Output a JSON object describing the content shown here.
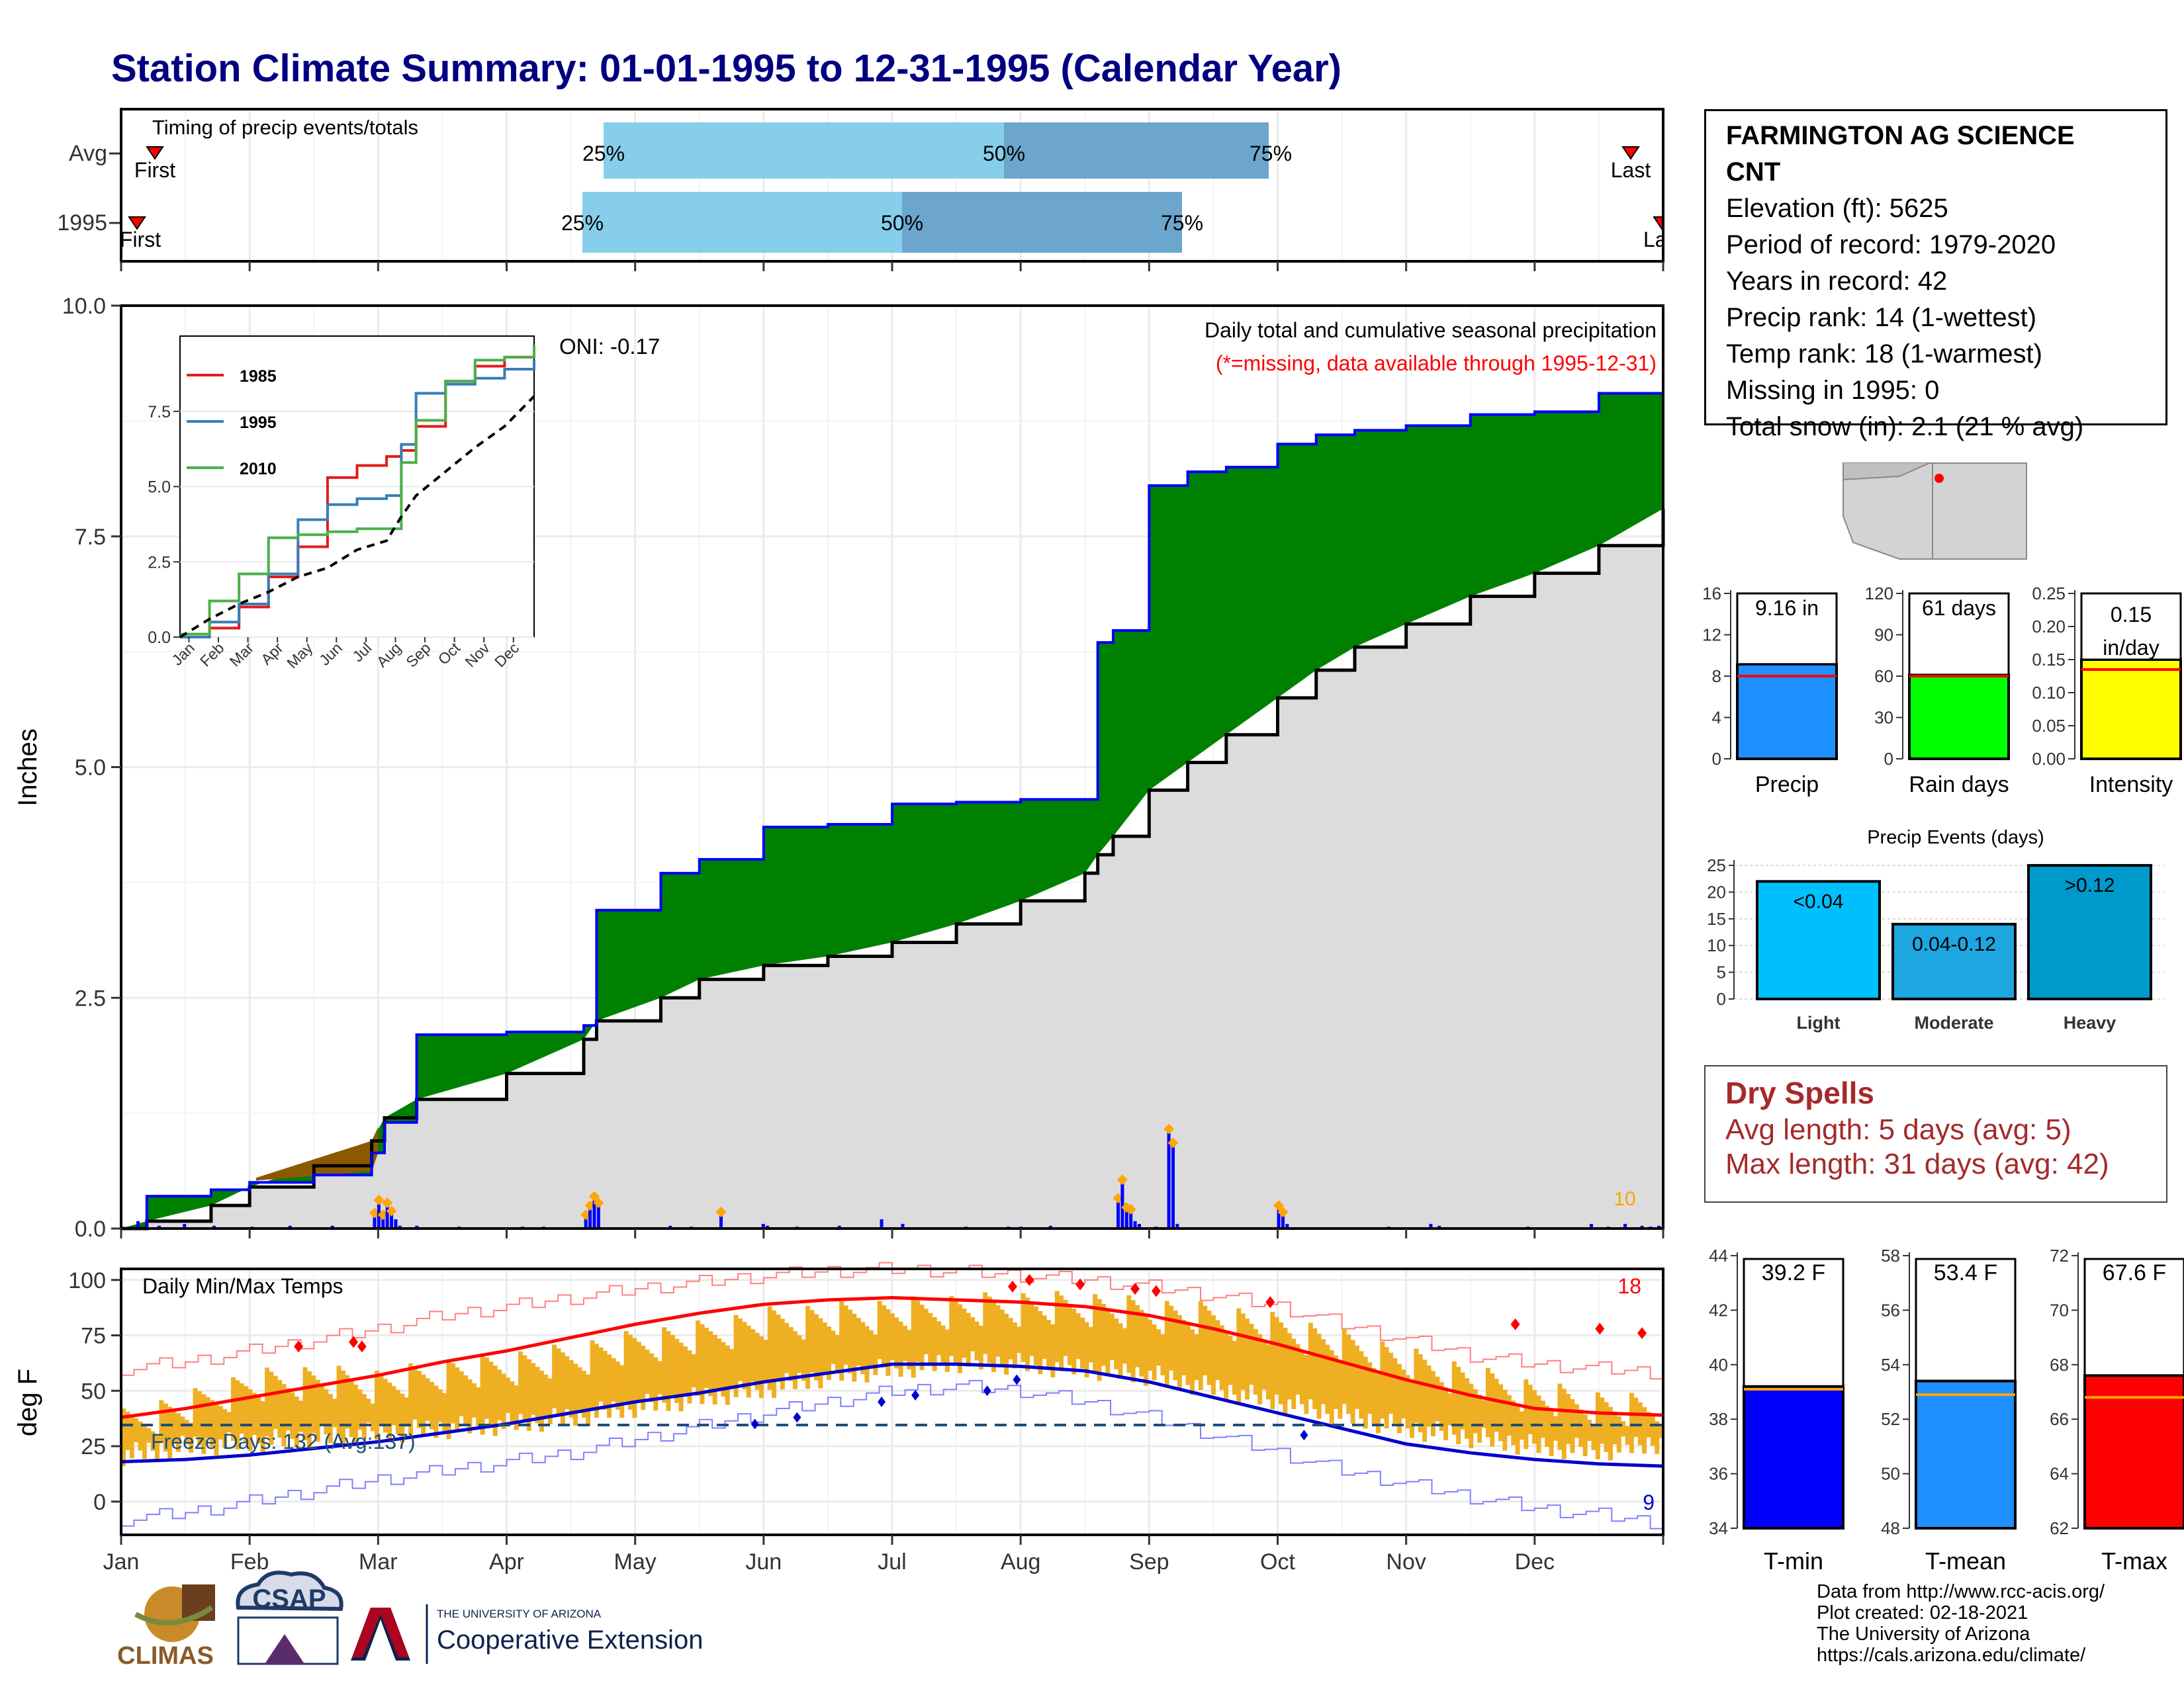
{
  "title": "Station Climate Summary: 01-01-1995 to 12-31-1995 (Calendar Year)",
  "timing_panel": {
    "label": "Timing of precip events/totals",
    "rows": [
      {
        "name": "Avg",
        "first_label": "First",
        "last_label": "Last",
        "p25": "25%",
        "p50": "50%",
        "p75": "75%"
      },
      {
        "name": "1995",
        "first_label": "First",
        "last_label": "Last",
        "p25": "25%",
        "p50": "50%",
        "p75": "75%"
      }
    ]
  },
  "station": {
    "name": "FARMINGTON AG SCIENCE",
    "name2": "CNT",
    "elevation": "Elevation (ft): 5625",
    "period": "Period of record: 1979-2020",
    "years": "Years in record: 42",
    "precip_rank": "Precip rank: 14 (1-wettest)",
    "temp_rank": "Temp rank: 18 (1-warmest)",
    "missing": "Missing in 1995: 0",
    "snow": "Total snow (in): 2.1 (21 % avg)"
  },
  "precip_panel": {
    "ylabel": "Inches",
    "y_ticks": [
      "0.0",
      "2.5",
      "5.0",
      "7.5",
      "10.0"
    ],
    "oni": "ONI: -0.17",
    "legend_title": "Daily total and cumulative seasonal precipitation",
    "missing_note": "(*=missing, data available through 1995-12-31)",
    "snow_count": "10"
  },
  "inset": {
    "series": [
      "1985",
      "1995",
      "2010"
    ],
    "y_ticks": [
      "0.0",
      "2.5",
      "5.0",
      "7.5"
    ],
    "x_ticks": [
      "Jan",
      "Feb",
      "Mar",
      "Apr",
      "May",
      "Jun",
      "Jul",
      "Aug",
      "Sep",
      "Oct",
      "Nov",
      "Dec"
    ]
  },
  "temp_panel": {
    "ylabel": "deg F",
    "label": "Daily Min/Max Temps",
    "freeze": "Freeze Days: 132 (Avg:137)",
    "hot_count": "18",
    "cold_count": "9",
    "y_ticks": [
      "0",
      "25",
      "50",
      "75",
      "100"
    ]
  },
  "months": [
    "Jan",
    "Feb",
    "Mar",
    "Apr",
    "May",
    "Jun",
    "Jul",
    "Aug",
    "Sep",
    "Oct",
    "Nov",
    "Dec"
  ],
  "bars_top": {
    "precip": {
      "label": "9.16 in",
      "axis": "Precip",
      "ticks": [
        "0",
        "4",
        "8",
        "12",
        "16"
      ]
    },
    "raindays": {
      "label": "61 days",
      "axis": "Rain days",
      "ticks": [
        "0",
        "30",
        "60",
        "90",
        "120"
      ]
    },
    "intensity": {
      "label1": "0.15",
      "label2": "in/day",
      "axis": "Intensity",
      "ticks": [
        "0.00",
        "0.05",
        "0.10",
        "0.15",
        "0.20",
        "0.25"
      ]
    }
  },
  "events": {
    "title": "Precip Events (days)",
    "ticks": [
      "0",
      "5",
      "10",
      "15",
      "20",
      "25"
    ],
    "bars": [
      {
        "name": "Light",
        "label": "<0.04"
      },
      {
        "name": "Moderate",
        "label": "0.04-0.12"
      },
      {
        "name": "Heavy",
        "label": ">0.12"
      }
    ]
  },
  "dry_spells": {
    "title": "Dry Spells",
    "avg": "Avg length: 5 days (avg: 5)",
    "max": "Max length: 31 days (avg: 42)"
  },
  "temp_bars": [
    {
      "label": "39.2 F",
      "axis": "T-min",
      "ticks": [
        "34",
        "36",
        "38",
        "40",
        "42",
        "44"
      ]
    },
    {
      "label": "53.4 F",
      "axis": "T-mean",
      "ticks": [
        "48",
        "50",
        "52",
        "54",
        "56",
        "58"
      ]
    },
    {
      "label": "67.6 F",
      "axis": "T-max",
      "ticks": [
        "62",
        "64",
        "66",
        "68",
        "70",
        "72"
      ]
    }
  ],
  "credits": {
    "l1": "Data from http://www.rcc-acis.org/",
    "l2": "Plot created: 02-18-2021",
    "l3": "The University of Arizona",
    "l4": "https://cals.arizona.edu/climate/"
  },
  "logos": {
    "climas": "CLIMAS",
    "csap": "CSAP",
    "ua_small": "THE UNIVERSITY OF ARIZONA",
    "coop": "Cooperative Extension"
  },
  "colors": {
    "title": "#000080",
    "green": "#008000",
    "brown": "#8B5A00",
    "gray": "#DCDCDC",
    "blue": "#0000FF",
    "light_blue": "#87CEEB",
    "mid_blue": "#6CA6CD",
    "orange": "#EFAF22",
    "red": "#FF0000",
    "dry": "#A52A2A"
  },
  "chart_data": [
    {
      "type": "area",
      "name": "cumulative precipitation 1995",
      "x_units": "month",
      "x": [
        0,
        0.2,
        0.7,
        1.0,
        1.5,
        1.95,
        2.05,
        2.3,
        3.0,
        3.6,
        3.7,
        4.2,
        4.5,
        5.0,
        5.5,
        6.0,
        6.5,
        7.0,
        7.5,
        7.6,
        7.72,
        8.0,
        8.3,
        8.6,
        9.0,
        9.3,
        9.6,
        10.0,
        10.5,
        11.0,
        11.5,
        12.0
      ],
      "series": [
        {
          "name": "1995 cumulative",
          "values": [
            0,
            0.35,
            0.42,
            0.5,
            0.58,
            0.82,
            1.15,
            2.1,
            2.13,
            2.2,
            3.45,
            3.85,
            4.0,
            4.35,
            4.38,
            4.6,
            4.62,
            4.65,
            4.65,
            6.35,
            6.48,
            8.05,
            8.2,
            8.25,
            8.5,
            8.6,
            8.65,
            8.7,
            8.82,
            8.85,
            9.05,
            9.16
          ]
        },
        {
          "name": "average cumulative",
          "values": [
            0,
            0.08,
            0.25,
            0.45,
            0.68,
            0.95,
            1.2,
            1.4,
            1.68,
            2.05,
            2.25,
            2.5,
            2.7,
            2.85,
            2.95,
            3.1,
            3.3,
            3.55,
            3.85,
            4.05,
            4.25,
            4.75,
            5.05,
            5.35,
            5.75,
            6.05,
            6.3,
            6.55,
            6.85,
            7.1,
            7.4,
            7.8
          ]
        }
      ],
      "ylabel": "Inches",
      "ylim": [
        0,
        10
      ]
    },
    {
      "type": "bar",
      "name": "daily precipitation 1995",
      "x_units": "day of year",
      "x": [
        4,
        9,
        15,
        22,
        31,
        40,
        50,
        60,
        61,
        62,
        63,
        64,
        65,
        66,
        70,
        80,
        95,
        100,
        110,
        111,
        112,
        113,
        130,
        135,
        142,
        152,
        153,
        160,
        170,
        180,
        185,
        200,
        210,
        213,
        220,
        236,
        237,
        238,
        239,
        240,
        241,
        245,
        248,
        249,
        250,
        274,
        275,
        276,
        300,
        310,
        312,
        333,
        348,
        352,
        356,
        360,
        362,
        364
      ],
      "values": [
        0.08,
        0.03,
        0.05,
        0.03,
        0.02,
        0.03,
        0.03,
        0.14,
        0.28,
        0.12,
        0.25,
        0.16,
        0.1,
        0.03,
        0.03,
        0.02,
        0.02,
        0.02,
        0.12,
        0.22,
        0.32,
        0.25,
        0.03,
        0.02,
        0.15,
        0.05,
        0.03,
        0.02,
        0.03,
        0.1,
        0.05,
        0.02,
        0.02,
        0.02,
        0.03,
        0.3,
        0.5,
        0.2,
        0.18,
        0.08,
        0.05,
        0.02,
        1.05,
        0.9,
        0.05,
        0.22,
        0.15,
        0.05,
        0.02,
        0.05,
        0.03,
        0.02,
        0.05,
        0.02,
        0.05,
        0.03,
        0.02,
        0.03
      ],
      "ylim": [
        0,
        10
      ]
    },
    {
      "type": "line",
      "name": "inset cumulative comparison",
      "x_units": "month",
      "categories": [
        "Jan",
        "Feb",
        "Mar",
        "Apr",
        "May",
        "Jun",
        "Jul",
        "Aug",
        "Sep",
        "Oct",
        "Nov",
        "Dec"
      ],
      "x": [
        0,
        1,
        2,
        3,
        4,
        5,
        6,
        7,
        7.5,
        8,
        9,
        10,
        11,
        12
      ],
      "series": [
        {
          "name": "1985",
          "values": [
            0,
            0.3,
            1.0,
            2.0,
            3.0,
            5.3,
            5.7,
            6.0,
            6.2,
            7.0,
            8.5,
            9.0,
            9.3,
            9.5
          ]
        },
        {
          "name": "1995",
          "values": [
            0,
            0.5,
            1.1,
            2.1,
            3.9,
            4.4,
            4.6,
            4.7,
            6.4,
            8.1,
            8.4,
            8.6,
            8.9,
            9.2
          ]
        },
        {
          "name": "2010",
          "values": [
            0.1,
            1.2,
            2.1,
            3.3,
            3.4,
            3.5,
            3.6,
            3.6,
            5.8,
            7.2,
            8.5,
            9.2,
            9.3,
            9.7
          ]
        },
        {
          "name": "avg",
          "values": [
            0,
            0.6,
            1.1,
            1.5,
            2.0,
            2.3,
            2.9,
            3.2,
            4.0,
            4.7,
            5.5,
            6.3,
            7.0,
            8.0
          ]
        }
      ],
      "ylim": [
        0,
        10
      ]
    },
    {
      "type": "line",
      "name": "daily min/max temps",
      "x_units": "month",
      "x": [
        0,
        0.5,
        1,
        1.5,
        2,
        2.5,
        3,
        3.5,
        4,
        4.5,
        5,
        5.5,
        6,
        6.5,
        7,
        7.5,
        8,
        8.5,
        9,
        9.5,
        10,
        10.5,
        11,
        11.5,
        12
      ],
      "series": [
        {
          "name": "1995 max upper",
          "values": [
            42,
            50,
            60,
            62,
            60,
            65,
            68,
            72,
            78,
            82,
            88,
            90,
            92,
            94,
            95,
            95,
            92,
            90,
            85,
            78,
            70,
            62,
            55,
            50,
            48
          ]
        },
        {
          "name": "1995 min lower",
          "values": [
            16,
            20,
            22,
            24,
            26,
            28,
            30,
            33,
            38,
            42,
            46,
            52,
            55,
            58,
            57,
            55,
            52,
            46,
            40,
            34,
            28,
            24,
            20,
            18,
            22
          ]
        },
        {
          "name": "avg max",
          "values": [
            38,
            42,
            47,
            52,
            57,
            63,
            68,
            74,
            80,
            85,
            89,
            91,
            92,
            91,
            90,
            88,
            84,
            78,
            71,
            63,
            55,
            48,
            42,
            40,
            39
          ]
        },
        {
          "name": "avg min",
          "values": [
            18,
            19,
            21,
            24,
            27,
            31,
            35,
            40,
            45,
            49,
            54,
            58,
            62,
            62,
            61,
            59,
            54,
            47,
            40,
            33,
            26,
            22,
            19,
            17,
            16
          ]
        },
        {
          "name": "record max",
          "values": [
            60,
            63,
            68,
            73,
            78,
            84,
            88,
            92,
            96,
            99,
            102,
            104,
            105,
            104,
            102,
            100,
            97,
            93,
            88,
            80,
            73,
            66,
            62,
            60,
            58
          ]
        },
        {
          "name": "record min",
          "values": [
            -8,
            -5,
            0,
            5,
            10,
            14,
            18,
            22,
            28,
            34,
            40,
            45,
            50,
            52,
            50,
            45,
            38,
            30,
            22,
            14,
            8,
            2,
            -3,
            -6,
            -10
          ]
        }
      ],
      "ylabel": "deg F",
      "ylim": [
        -15,
        105
      ]
    },
    {
      "type": "bar",
      "name": "season totals",
      "categories": [
        "Precip",
        "Rain days",
        "Intensity"
      ],
      "values": [
        9.16,
        61,
        0.15
      ],
      "averages": [
        8.0,
        60,
        0.135
      ]
    },
    {
      "type": "bar",
      "name": "Precip Events (days)",
      "categories": [
        "Light",
        "Moderate",
        "Heavy"
      ],
      "values": [
        22,
        14,
        25
      ],
      "ylim": [
        0,
        26
      ]
    },
    {
      "type": "bar",
      "name": "mean temperatures",
      "categories": [
        "T-min",
        "T-mean",
        "T-max"
      ],
      "values": [
        39.2,
        53.4,
        67.6
      ],
      "averages": [
        39.1,
        52.9,
        66.8
      ]
    }
  ]
}
